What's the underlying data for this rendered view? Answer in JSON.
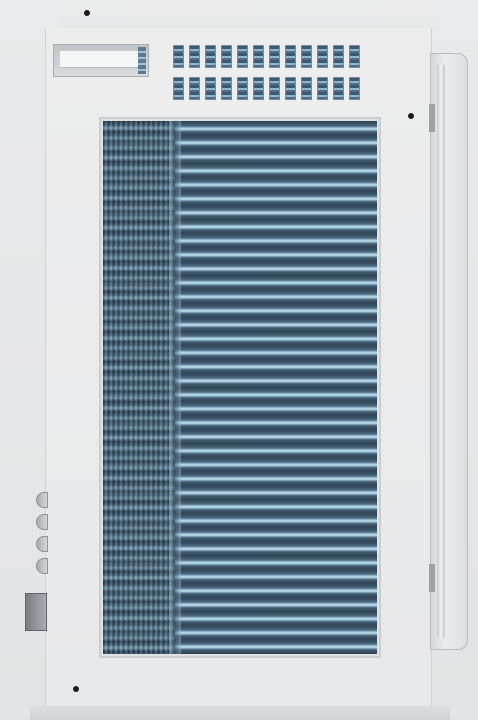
{
  "image": {
    "subject": "air-conditioner-unit-rear-view",
    "colors": {
      "casing": "#e8e9ea",
      "coil_dark": "#33495c",
      "coil_light": "#c9e2f1",
      "screw": "#1c1c1c"
    },
    "components": {
      "screws": [
        "screw",
        "screw",
        "screw"
      ],
      "vent_rows": 2,
      "vent_slots_per_row": 12,
      "side_louvers": 4
    }
  }
}
